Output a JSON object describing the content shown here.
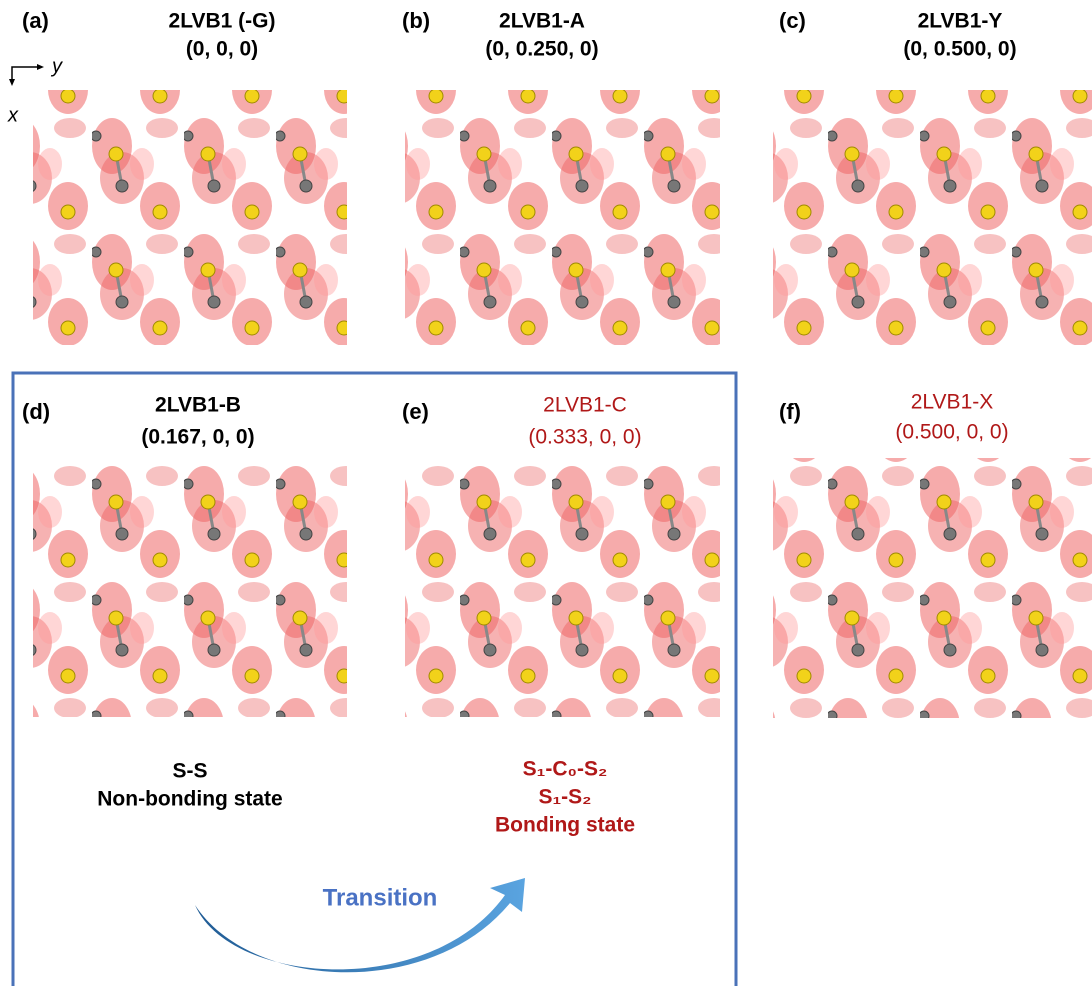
{
  "axes": {
    "y": "y",
    "x": "x"
  },
  "panels": [
    {
      "label": "(a)",
      "name": "2LVB1 (-G)",
      "coords": "(0, 0, 0)",
      "color": "#000000"
    },
    {
      "label": "(b)",
      "name": "2LVB1-A",
      "coords": "(0, 0.250, 0)",
      "color": "#000000"
    },
    {
      "label": "(c)",
      "name": "2LVB1-Y",
      "coords": "(0, 0.500, 0)",
      "color": "#000000"
    },
    {
      "label": "(d)",
      "name": "2LVB1-B",
      "coords": "(0.167, 0, 0)",
      "color": "#000000"
    },
    {
      "label": "(e)",
      "name": "2LVB1-C",
      "coords": "(0.333, 0, 0)",
      "color": "#b01818"
    },
    {
      "label": "(f)",
      "name": "2LVB1-X",
      "coords": "(0.500, 0, 0)",
      "color": "#b01818"
    }
  ],
  "notes": {
    "d": [
      "S-S",
      "Non-bonding state"
    ],
    "e": [
      "S₁-C₀-S₂",
      "S₁-S₂",
      "Bonding state"
    ]
  },
  "arrow_label": "Transition"
}
